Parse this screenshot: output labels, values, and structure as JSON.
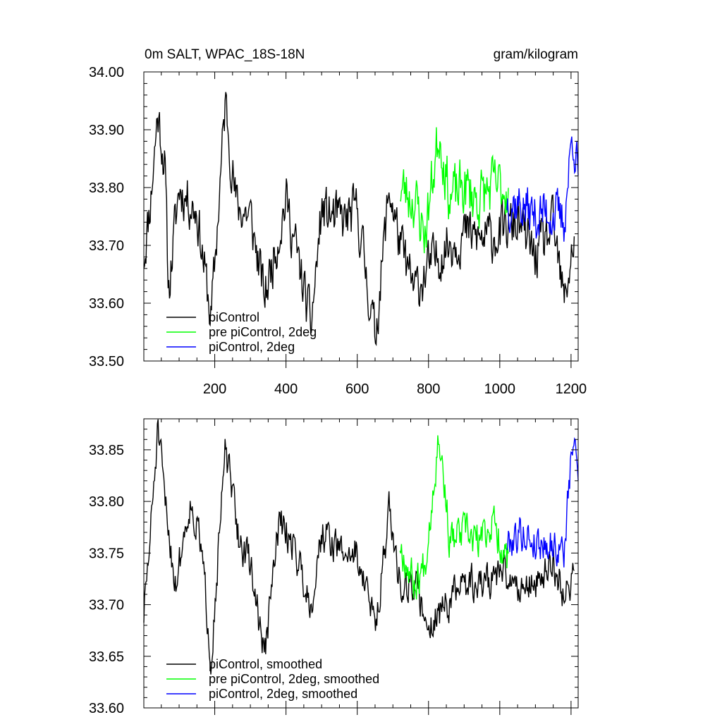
{
  "chart_data": [
    {
      "type": "line",
      "title": "0m SALT, WPAC_18S-18N",
      "units": "gram/kilogram",
      "xlim": [
        1,
        1220
      ],
      "ylim": [
        33.5,
        34.0
      ],
      "x_ticks": [
        200,
        400,
        600,
        800,
        1000,
        1200
      ],
      "y_ticks": [
        "33.50",
        "33.60",
        "33.70",
        "33.80",
        "33.90",
        "34.00"
      ],
      "legend_position": "bottom-left",
      "legend": [
        "piControl",
        "pre piControl, 2deg",
        "piControl, 2deg"
      ],
      "series": [
        {
          "name": "piControl",
          "color": "#000000",
          "x_range": [
            1,
            1210
          ],
          "anchors": [
            [
              1,
              33.68
            ],
            [
              20,
              33.78
            ],
            [
              40,
              33.93
            ],
            [
              60,
              33.84
            ],
            [
              70,
              33.62
            ],
            [
              100,
              33.8
            ],
            [
              150,
              33.76
            ],
            [
              190,
              33.57
            ],
            [
              230,
              33.95
            ],
            [
              260,
              33.77
            ],
            [
              300,
              33.75
            ],
            [
              340,
              33.61
            ],
            [
              400,
              33.78
            ],
            [
              470,
              33.56
            ],
            [
              500,
              33.76
            ],
            [
              560,
              33.74
            ],
            [
              600,
              33.76
            ],
            [
              650,
              33.54
            ],
            [
              690,
              33.8
            ],
            [
              720,
              33.7
            ],
            [
              760,
              33.62
            ],
            [
              800,
              33.66
            ],
            [
              850,
              33.7
            ],
            [
              900,
              33.72
            ],
            [
              950,
              33.71
            ],
            [
              1000,
              33.72
            ],
            [
              1050,
              33.74
            ],
            [
              1100,
              33.68
            ],
            [
              1150,
              33.73
            ],
            [
              1180,
              33.6
            ],
            [
              1210,
              33.72
            ]
          ],
          "amplitude": 0.07,
          "seed": 11
        },
        {
          "name": "pre piControl, 2deg",
          "color": "#00ff00",
          "x_range": [
            720,
            1025
          ],
          "anchors": [
            [
              720,
              33.8
            ],
            [
              760,
              33.78
            ],
            [
              790,
              33.72
            ],
            [
              830,
              33.9
            ],
            [
              860,
              33.78
            ],
            [
              900,
              33.8
            ],
            [
              940,
              33.78
            ],
            [
              980,
              33.8
            ],
            [
              1025,
              33.8
            ]
          ],
          "amplitude": 0.08,
          "seed": 23
        },
        {
          "name": "piControl, 2deg",
          "color": "#0000ff",
          "x_range": [
            1020,
            1220
          ],
          "anchors": [
            [
              1020,
              33.78
            ],
            [
              1060,
              33.77
            ],
            [
              1100,
              33.75
            ],
            [
              1140,
              33.76
            ],
            [
              1180,
              33.74
            ],
            [
              1205,
              33.9
            ],
            [
              1220,
              33.82
            ]
          ],
          "amplitude": 0.07,
          "seed": 37
        }
      ]
    },
    {
      "type": "line",
      "title": "",
      "xlim": [
        1,
        1220
      ],
      "ylim": [
        33.6,
        33.88
      ],
      "x_ticks": [
        200,
        400,
        600,
        800,
        1000,
        1200
      ],
      "y_ticks": [
        "33.60",
        "33.65",
        "33.70",
        "33.75",
        "33.80",
        "33.85"
      ],
      "legend_position": "bottom-left",
      "legend": [
        "piControl, smoothed",
        "pre piControl, 2deg, smoothed",
        "piControl, 2deg, smoothed"
      ],
      "series": [
        {
          "name": "piControl, smoothed",
          "color": "#000000",
          "x_range": [
            1,
            1210
          ],
          "anchors": [
            [
              1,
              33.69
            ],
            [
              20,
              33.77
            ],
            [
              40,
              33.87
            ],
            [
              60,
              33.8
            ],
            [
              90,
              33.72
            ],
            [
              130,
              33.8
            ],
            [
              160,
              33.76
            ],
            [
              190,
              33.65
            ],
            [
              230,
              33.85
            ],
            [
              270,
              33.76
            ],
            [
              300,
              33.74
            ],
            [
              340,
              33.65
            ],
            [
              380,
              33.78
            ],
            [
              420,
              33.76
            ],
            [
              470,
              33.7
            ],
            [
              500,
              33.77
            ],
            [
              560,
              33.75
            ],
            [
              600,
              33.75
            ],
            [
              650,
              33.68
            ],
            [
              690,
              33.79
            ],
            [
              720,
              33.72
            ],
            [
              760,
              33.72
            ],
            [
              800,
              33.68
            ],
            [
              850,
              33.7
            ],
            [
              900,
              33.72
            ],
            [
              950,
              33.72
            ],
            [
              1000,
              33.73
            ],
            [
              1050,
              33.72
            ],
            [
              1100,
              33.72
            ],
            [
              1150,
              33.74
            ],
            [
              1180,
              33.71
            ],
            [
              1210,
              33.73
            ]
          ],
          "amplitude": 0.028,
          "seed": 51
        },
        {
          "name": "pre piControl, 2deg, smoothed",
          "color": "#00ff00",
          "x_range": [
            720,
            1025
          ],
          "anchors": [
            [
              720,
              33.76
            ],
            [
              760,
              33.72
            ],
            [
              790,
              33.74
            ],
            [
              830,
              33.87
            ],
            [
              860,
              33.76
            ],
            [
              900,
              33.77
            ],
            [
              940,
              33.76
            ],
            [
              980,
              33.78
            ],
            [
              1025,
              33.74
            ]
          ],
          "amplitude": 0.03,
          "seed": 67
        },
        {
          "name": "piControl, 2deg, smoothed",
          "color": "#0000ff",
          "x_range": [
            1020,
            1220
          ],
          "anchors": [
            [
              1020,
              33.76
            ],
            [
              1060,
              33.77
            ],
            [
              1100,
              33.76
            ],
            [
              1140,
              33.76
            ],
            [
              1180,
              33.75
            ],
            [
              1205,
              33.86
            ],
            [
              1220,
              33.83
            ]
          ],
          "amplitude": 0.028,
          "seed": 79
        }
      ]
    }
  ]
}
